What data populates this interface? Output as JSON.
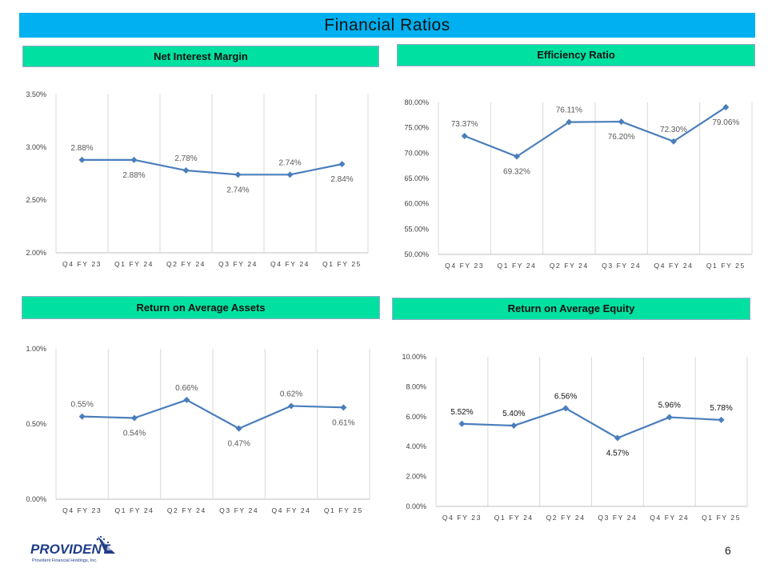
{
  "slide": {
    "title": "Financial Ratios",
    "page_number": "6",
    "logo_name": "PROVIDENT",
    "logo_subtitle": "Provident Financial Holdings, Inc."
  },
  "colors": {
    "title_bar": "#00b0f0",
    "header_bar": "#00e0a0",
    "series_line": "#4a7ebb",
    "grid": "#d9d9d9",
    "axis_text": "#404040",
    "logo_blue": "#1f3c88"
  },
  "chart_data": [
    {
      "id": "nim",
      "type": "line",
      "title": "Net Interest Margin",
      "categories": [
        "Q4 FY 23",
        "Q1 FY 24",
        "Q2 FY 24",
        "Q3 FY 24",
        "Q4 FY 24",
        "Q1 FY 25"
      ],
      "values": [
        2.88,
        2.88,
        2.78,
        2.74,
        2.74,
        2.84
      ],
      "data_labels": [
        "2.88%",
        "2.88%",
        "2.78%",
        "2.74%",
        "2.74%",
        "2.84%"
      ],
      "label_positions": [
        "above",
        "below",
        "above",
        "below",
        "above",
        "below"
      ],
      "ylim": [
        2.0,
        3.5
      ],
      "yticks": [
        2.0,
        2.5,
        3.0,
        3.5
      ],
      "ytick_labels": [
        "2.00%",
        "2.50%",
        "3.00%",
        "3.50%"
      ],
      "xlabel": "",
      "ylabel": "",
      "grid": "vertical",
      "legend": "none"
    },
    {
      "id": "eff",
      "type": "line",
      "title": "Efficiency Ratio",
      "categories": [
        "Q4 FY 23",
        "Q1 FY 24",
        "Q2 FY 24",
        "Q3 FY 24",
        "Q4 FY 24",
        "Q1 FY 25"
      ],
      "values": [
        73.37,
        69.32,
        76.11,
        76.2,
        72.3,
        79.06
      ],
      "data_labels": [
        "73.37%",
        "69.32%",
        "76.11%",
        "76.20%",
        "72.30%",
        "79.06%"
      ],
      "label_positions": [
        "above",
        "below",
        "above",
        "below",
        "above",
        "below"
      ],
      "ylim": [
        50,
        80
      ],
      "yticks": [
        50,
        55,
        60,
        65,
        70,
        75,
        80
      ],
      "ytick_labels": [
        "50.00%",
        "55.00%",
        "60.00%",
        "65.00%",
        "70.00%",
        "75.00%",
        "80.00%"
      ],
      "xlabel": "",
      "ylabel": "",
      "grid": "vertical",
      "legend": "none"
    },
    {
      "id": "roa",
      "type": "line",
      "title": "Return on Average Assets",
      "categories": [
        "Q4 FY 23",
        "Q1 FY 24",
        "Q2 FY 24",
        "Q3 FY 24",
        "Q4 FY 24",
        "Q1 FY 25"
      ],
      "values": [
        0.55,
        0.54,
        0.66,
        0.47,
        0.62,
        0.61
      ],
      "data_labels": [
        "0.55%",
        "0.54%",
        "0.66%",
        "0.47%",
        "0.62%",
        "0.61%"
      ],
      "label_positions": [
        "above",
        "below",
        "above",
        "below",
        "above",
        "below"
      ],
      "ylim": [
        0,
        1.0
      ],
      "yticks": [
        0,
        0.5,
        1.0
      ],
      "ytick_labels": [
        "0.00%",
        "0.50%",
        "1.00%"
      ],
      "xlabel": "",
      "ylabel": "",
      "grid": "vertical",
      "legend": "none"
    },
    {
      "id": "roe",
      "type": "line",
      "title": "Return on Average Equity",
      "categories": [
        "Q4 FY 23",
        "Q1 FY 24",
        "Q2 FY 24",
        "Q3 FY 24",
        "Q4 FY 24",
        "Q1 FY 25"
      ],
      "values": [
        5.52,
        5.4,
        6.56,
        4.57,
        5.96,
        5.78
      ],
      "data_labels": [
        "5.52%",
        "5.40%",
        "6.56%",
        "4.57%",
        "5.96%",
        "5.78%"
      ],
      "label_positions": [
        "above",
        "above",
        "above",
        "below",
        "above",
        "above"
      ],
      "ylim": [
        0,
        10
      ],
      "yticks": [
        0,
        2,
        4,
        6,
        8,
        10
      ],
      "ytick_labels": [
        "0.00%",
        "2.00%",
        "4.00%",
        "6.00%",
        "8.00%",
        "10.00%"
      ],
      "xlabel": "",
      "ylabel": "",
      "grid": "vertical",
      "legend": "none"
    }
  ]
}
